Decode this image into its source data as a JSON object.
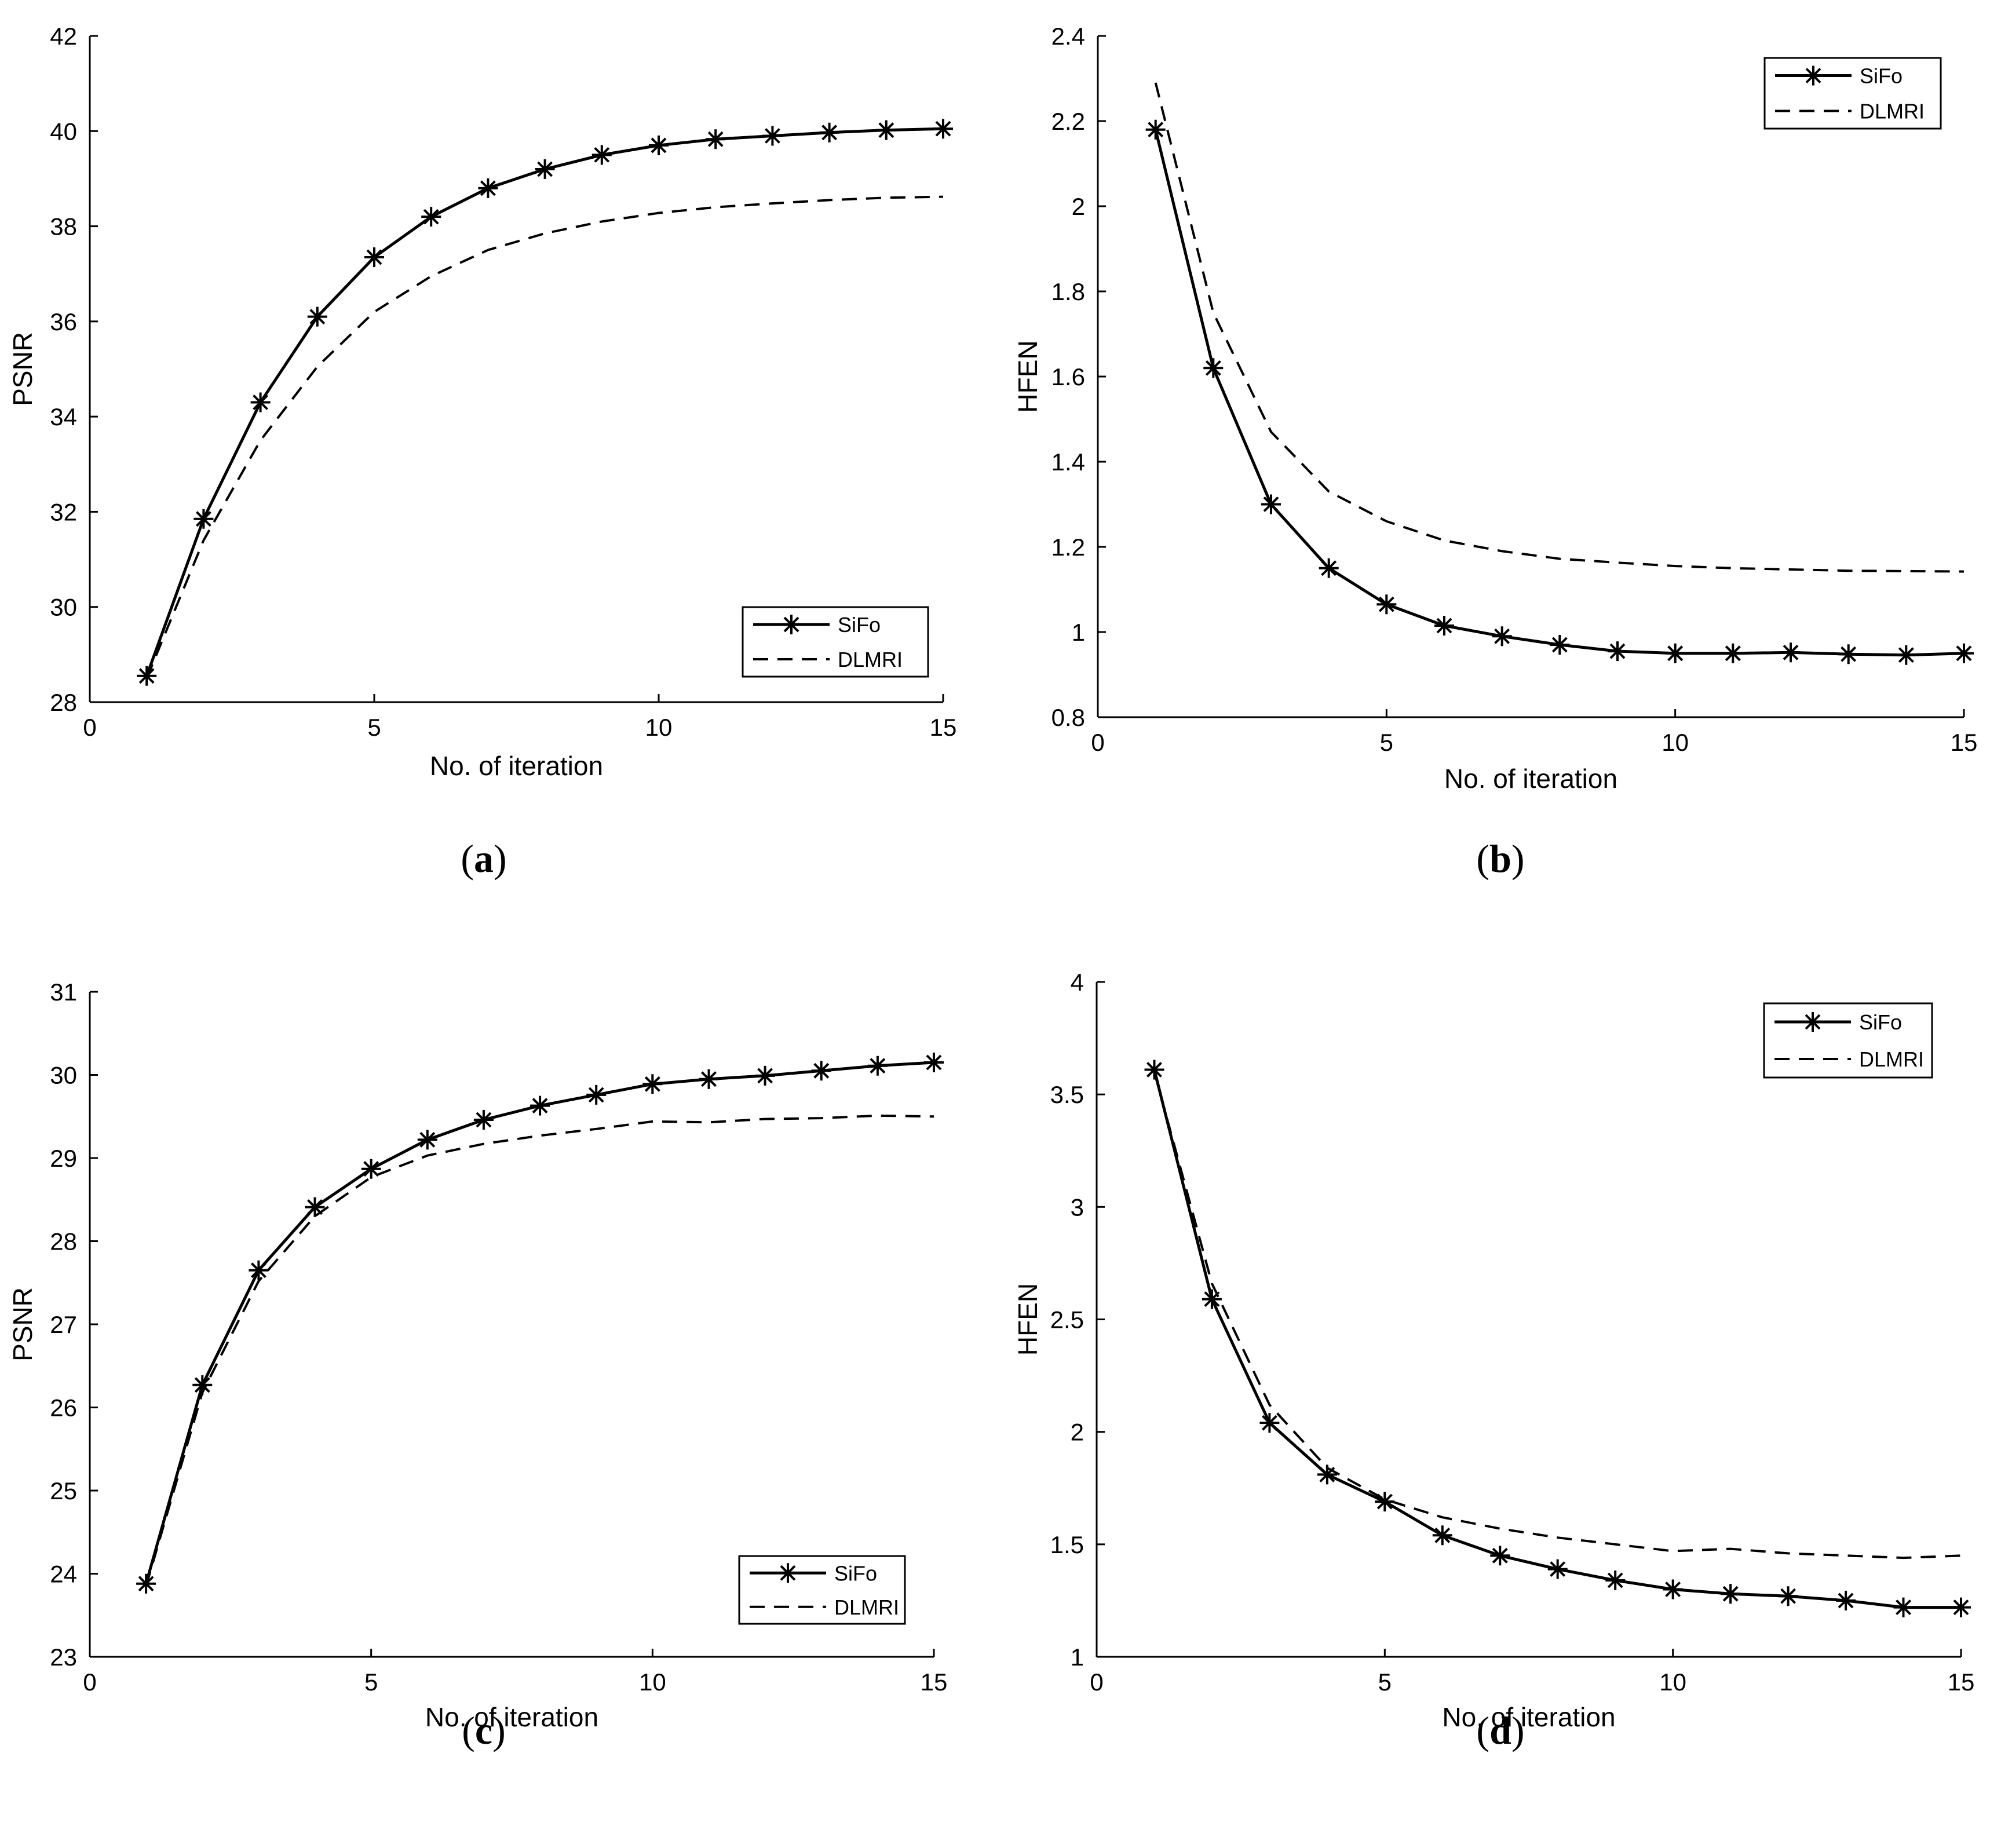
{
  "figure": {
    "colors": {
      "foreground": "#000000",
      "background": "#ffffff"
    }
  },
  "chart_data": [
    {
      "type": "line",
      "panel_label": "a",
      "title": "",
      "xlabel": "No. of iteration",
      "ylabel": "PSNR",
      "xlim": [
        0,
        15
      ],
      "ylim": [
        28,
        42
      ],
      "xticks": [
        0,
        5,
        10,
        15
      ],
      "yticks": [
        28,
        30,
        32,
        34,
        36,
        38,
        40,
        42
      ],
      "grid": false,
      "legend_position": "bottom-right",
      "x": [
        1,
        2,
        3,
        4,
        5,
        6,
        7,
        8,
        9,
        10,
        11,
        12,
        13,
        14,
        15
      ],
      "series": [
        {
          "name": "SiFo",
          "style": "solid-asterisk",
          "values": [
            28.55,
            31.85,
            34.3,
            36.1,
            37.35,
            38.2,
            38.8,
            39.2,
            39.5,
            39.7,
            39.83,
            39.9,
            39.97,
            40.02,
            40.05
          ]
        },
        {
          "name": "DLMRI",
          "style": "dashed",
          "values": [
            28.5,
            31.4,
            33.5,
            35.05,
            36.2,
            36.95,
            37.5,
            37.85,
            38.1,
            38.28,
            38.4,
            38.48,
            38.55,
            38.6,
            38.62
          ]
        }
      ]
    },
    {
      "type": "line",
      "panel_label": "b",
      "title": "",
      "xlabel": "No. of iteration",
      "ylabel": "HFEN",
      "xlim": [
        0,
        15
      ],
      "ylim": [
        0.8,
        2.4
      ],
      "xticks": [
        0,
        5,
        10,
        15
      ],
      "yticks": [
        0.8,
        1,
        1.2,
        1.4,
        1.6,
        1.8,
        2,
        2.2,
        2.4
      ],
      "grid": false,
      "legend_position": "top-right",
      "x": [
        1,
        2,
        3,
        4,
        5,
        6,
        7,
        8,
        9,
        10,
        11,
        12,
        13,
        14,
        15
      ],
      "series": [
        {
          "name": "SiFo",
          "style": "solid-asterisk",
          "values": [
            2.18,
            1.62,
            1.3,
            1.15,
            1.065,
            1.015,
            0.99,
            0.97,
            0.955,
            0.95,
            0.95,
            0.952,
            0.948,
            0.946,
            0.95
          ]
        },
        {
          "name": "DLMRI",
          "style": "dashed",
          "values": [
            2.29,
            1.75,
            1.47,
            1.33,
            1.26,
            1.215,
            1.19,
            1.172,
            1.163,
            1.155,
            1.15,
            1.147,
            1.144,
            1.143,
            1.142
          ]
        }
      ]
    },
    {
      "type": "line",
      "panel_label": "c",
      "title": "",
      "xlabel": "No. of iteration",
      "ylabel": "PSNR",
      "xlim": [
        0,
        15
      ],
      "ylim": [
        23,
        31
      ],
      "xticks": [
        0,
        5,
        10,
        15
      ],
      "yticks": [
        23,
        24,
        25,
        26,
        27,
        28,
        29,
        30,
        31
      ],
      "grid": false,
      "legend_position": "bottom-right",
      "x": [
        1,
        2,
        3,
        4,
        5,
        6,
        7,
        8,
        9,
        10,
        11,
        12,
        13,
        14,
        15
      ],
      "series": [
        {
          "name": "SiFo",
          "style": "solid-asterisk",
          "values": [
            23.88,
            26.27,
            27.65,
            28.41,
            28.87,
            29.22,
            29.46,
            29.63,
            29.76,
            29.89,
            29.95,
            29.99,
            30.05,
            30.11,
            30.15
          ]
        },
        {
          "name": "DLMRI",
          "style": "dashed",
          "values": [
            23.85,
            26.18,
            27.52,
            28.3,
            28.77,
            29.03,
            29.17,
            29.27,
            29.35,
            29.44,
            29.43,
            29.47,
            29.48,
            29.51,
            29.5
          ]
        }
      ]
    },
    {
      "type": "line",
      "panel_label": "d",
      "title": "",
      "xlabel": "No. of iteration",
      "ylabel": "HFEN",
      "xlim": [
        0,
        15
      ],
      "ylim": [
        1,
        4
      ],
      "xticks": [
        0,
        5,
        10,
        15
      ],
      "yticks": [
        1,
        1.5,
        2,
        2.5,
        3,
        3.5,
        4
      ],
      "grid": false,
      "legend_position": "top-right",
      "x": [
        1,
        2,
        3,
        4,
        5,
        6,
        7,
        8,
        9,
        10,
        11,
        12,
        13,
        14,
        15
      ],
      "series": [
        {
          "name": "SiFo",
          "style": "solid-asterisk",
          "values": [
            3.61,
            2.59,
            2.04,
            1.81,
            1.69,
            1.54,
            1.45,
            1.39,
            1.34,
            1.3,
            1.28,
            1.27,
            1.25,
            1.22,
            1.22
          ]
        },
        {
          "name": "DLMRI",
          "style": "dashed",
          "values": [
            3.6,
            2.66,
            2.12,
            1.84,
            1.7,
            1.62,
            1.57,
            1.53,
            1.5,
            1.47,
            1.48,
            1.46,
            1.45,
            1.44,
            1.45
          ]
        }
      ]
    }
  ]
}
